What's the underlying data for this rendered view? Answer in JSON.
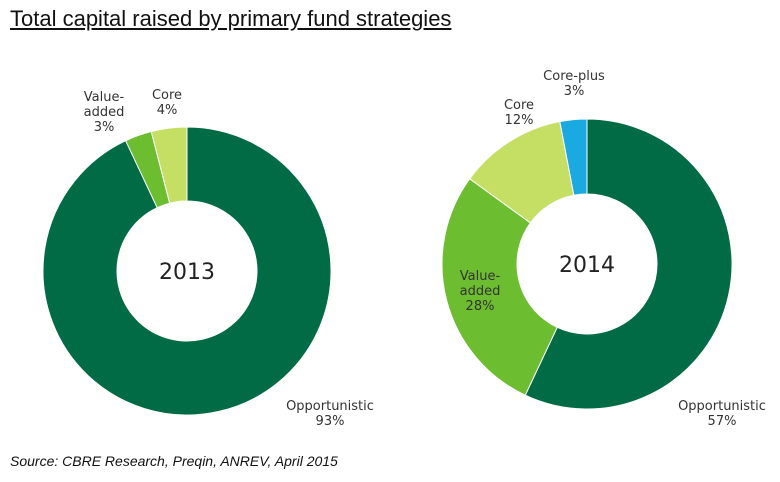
{
  "title": "Total capital raised by primary fund strategies",
  "source": "Source: CBRE Research, Preqin, ANREV, April 2015",
  "colors": {
    "Opportunistic": "#006b45",
    "Value-added": "#6cbd2f",
    "Core": "#c5df65",
    "Core-plus": "#1aa9e0"
  },
  "chart_data": [
    {
      "type": "pie",
      "center_label": "2013",
      "slices": [
        {
          "name": "Core",
          "value": 4,
          "label_lines": [
            "Core",
            "4%"
          ]
        },
        {
          "name": "Opportunistic",
          "value": 93,
          "label_lines": [
            "Opportunistic",
            "93%"
          ]
        },
        {
          "name": "Value-added",
          "value": 3,
          "label_lines": [
            "Value-",
            "added",
            "3%"
          ]
        }
      ]
    },
    {
      "type": "pie",
      "center_label": "2014",
      "slices": [
        {
          "name": "Opportunistic",
          "value": 57,
          "label_lines": [
            "Opportunistic",
            "57%"
          ]
        },
        {
          "name": "Value-added",
          "value": 28,
          "label_lines": [
            "Value-",
            "added",
            "28%"
          ]
        },
        {
          "name": "Core",
          "value": 12,
          "label_lines": [
            "Core",
            "12%"
          ]
        },
        {
          "name": "Core-plus",
          "value": 3,
          "label_lines": [
            "Core-plus",
            "3%"
          ]
        }
      ]
    }
  ]
}
